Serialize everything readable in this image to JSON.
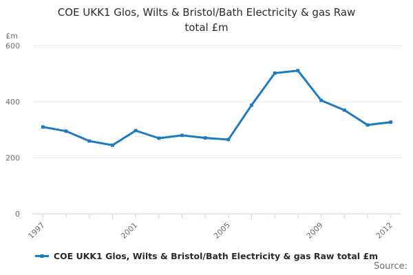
{
  "header": {
    "line1": "COE UKK1 Glos, Wilts & Bristol/Bath Electricity & gas Raw",
    "line2": "total £m"
  },
  "axes": {
    "y_unit": "£m",
    "y_ticks": [
      "600",
      "400",
      "200",
      "0"
    ],
    "x_ticks": [
      "1997",
      "2001",
      "2005",
      "2009",
      "2012"
    ]
  },
  "legend": {
    "label": "COE UKK1 Glos, Wilts & Bristol/Bath Electricity & gas Raw total £m"
  },
  "footer": {
    "source_label": "Source:"
  },
  "colors": {
    "series": "#1A7AC2",
    "axis": "#C6D3E8",
    "grid": "#E6E6E6",
    "muted_text": "#6D6D6D",
    "title_text": "#2A2A2A"
  },
  "chart_data": {
    "type": "line",
    "title": "COE UKK1 Glos, Wilts & Bristol/Bath Electricity & gas Raw total £m",
    "x": [
      1997,
      1998,
      1999,
      2000,
      2001,
      2002,
      2003,
      2004,
      2005,
      2006,
      2007,
      2008,
      2009,
      2010,
      2011,
      2012
    ],
    "series": [
      {
        "name": "COE UKK1 Glos, Wilts & Bristol/Bath Electricity & gas Raw total £m",
        "values": [
          310,
          295,
          260,
          245,
          297,
          270,
          280,
          271,
          265,
          388,
          502,
          511,
          405,
          370,
          317,
          327
        ]
      }
    ],
    "xlabel": "",
    "ylabel": "£m",
    "ylim": [
      0,
      600
    ],
    "y_gridlines": [
      0,
      200,
      400,
      600
    ],
    "x_labeled_ticks": [
      1997,
      2001,
      2005,
      2009,
      2012
    ],
    "grid": "horizontal",
    "legend_position": "bottom",
    "marker": "square"
  }
}
